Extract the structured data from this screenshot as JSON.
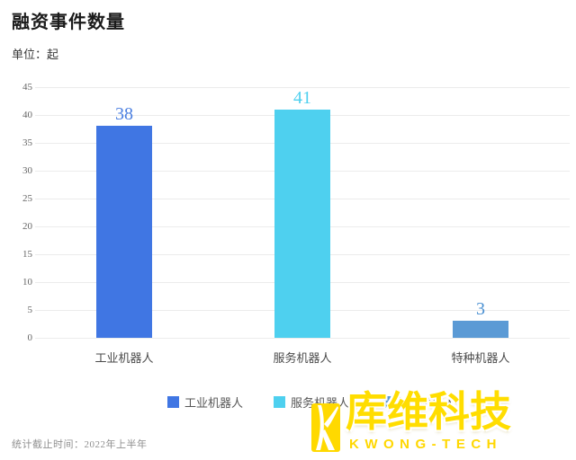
{
  "title": "融资事件数量",
  "unit_label": "单位：起",
  "footer_note": "统计截止时间：2022年上半年",
  "watermark": {
    "cn_text": "库维科技",
    "en_text": "KWONG-TECH",
    "logo_color": "#FFD900"
  },
  "legend": {
    "items": [
      {
        "label": "工业机器人",
        "color": "#4076E3"
      },
      {
        "label": "服务机器人",
        "color": "#4ED0EF"
      },
      {
        "label": "特种机器人",
        "color": "#5B9AD5"
      }
    ]
  },
  "chart_data": {
    "type": "bar",
    "title": "融资事件数量",
    "ylabel": "单位：起",
    "categories": [
      "工业机器人",
      "服务机器人",
      "特种机器人"
    ],
    "values": [
      38,
      41,
      3
    ],
    "bar_colors": [
      "#4076E3",
      "#4ED0EF",
      "#5B9AD5"
    ],
    "value_label_colors": [
      "#4A7EE0",
      "#4ED0EF",
      "#4A90D2"
    ],
    "ylim": [
      0,
      45
    ],
    "ytick_step": 5,
    "yticks": [
      0,
      5,
      10,
      15,
      20,
      25,
      30,
      35,
      40,
      45
    ],
    "grid": true,
    "legend_position": "bottom"
  }
}
